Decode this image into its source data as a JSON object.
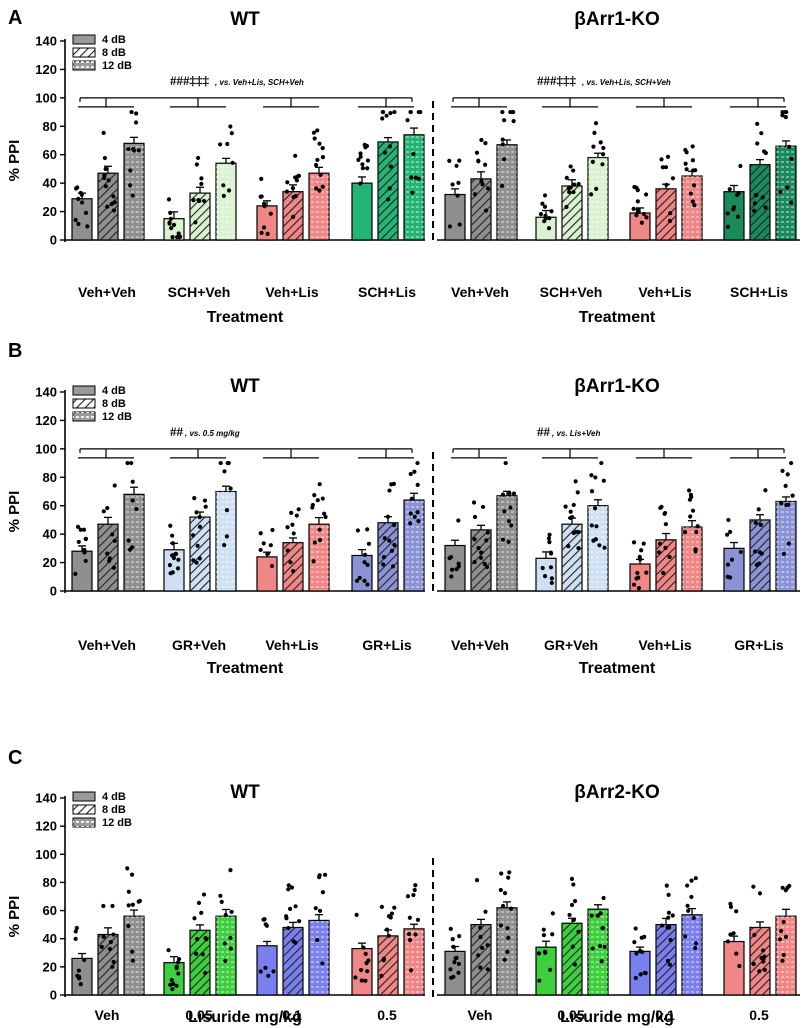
{
  "chart_data": [
    {
      "panel": "A",
      "type": "bar",
      "ylabel": "% PPI",
      "ylim": [
        0,
        140
      ],
      "yticks": [
        0,
        20,
        40,
        60,
        80,
        100,
        120,
        140
      ],
      "legend": [
        "4 dB",
        "8 dB",
        "12 dB"
      ],
      "groups": [
        {
          "title": "WT",
          "xlabel": "Treatment",
          "significance": {
            "symbols": "###‡‡‡",
            "suffix": ", vs. Veh+Lis, SCH+Veh"
          },
          "categories": [
            {
              "label": "Veh+Veh",
              "color": "#8f8f8f",
              "values": [
                29,
                47,
                68
              ]
            },
            {
              "label": "SCH+Veh",
              "color": "#d9f2cf",
              "values": [
                15,
                33,
                54
              ]
            },
            {
              "label": "Veh+Lis",
              "color": "#f08686",
              "values": [
                24,
                34,
                47
              ]
            },
            {
              "label": "SCH+Lis",
              "color": "#22b573",
              "values": [
                40,
                69,
                74
              ]
            }
          ]
        },
        {
          "title": "βArr1-KO",
          "xlabel": "Treatment",
          "significance": {
            "symbols": "###‡‡‡",
            "suffix": ", vs. Veh+Lis, SCH+Veh"
          },
          "categories": [
            {
              "label": "Veh+Veh",
              "color": "#8f8f8f",
              "values": [
                32,
                43,
                67
              ]
            },
            {
              "label": "SCH+Veh",
              "color": "#d9f2cf",
              "values": [
                16,
                38,
                58
              ]
            },
            {
              "label": "Veh+Lis",
              "color": "#f08686",
              "values": [
                19,
                36,
                45
              ]
            },
            {
              "label": "SCH+Lis",
              "color": "#1a8a5c",
              "values": [
                34,
                53,
                66
              ]
            }
          ]
        }
      ]
    },
    {
      "panel": "B",
      "type": "bar",
      "ylabel": "% PPI",
      "ylim": [
        0,
        140
      ],
      "yticks": [
        0,
        20,
        40,
        60,
        80,
        100,
        120,
        140
      ],
      "legend": [
        "4 dB",
        "8 dB",
        "12 dB"
      ],
      "groups": [
        {
          "title": "WT",
          "xlabel": "Treatment",
          "significance": {
            "symbols": "##",
            "suffix": ", vs. 0.5 mg/kg"
          },
          "categories": [
            {
              "label": "Veh+Veh",
              "color": "#8f8f8f",
              "values": [
                28,
                47,
                68
              ]
            },
            {
              "label": "GR+Veh",
              "color": "#cfe0f5",
              "values": [
                29,
                52,
                70
              ]
            },
            {
              "label": "Veh+Lis",
              "color": "#f08686",
              "values": [
                24,
                34,
                47
              ]
            },
            {
              "label": "GR+Lis",
              "color": "#8a93d6",
              "values": [
                25,
                48,
                64
              ]
            }
          ]
        },
        {
          "title": "βArr1-KO",
          "xlabel": "Treatment",
          "significance": {
            "symbols": "##",
            "suffix": ", vs. Lis+Veh"
          },
          "categories": [
            {
              "label": "Veh+Veh",
              "color": "#8f8f8f",
              "values": [
                32,
                43,
                67
              ]
            },
            {
              "label": "GR+Veh",
              "color": "#cfe0f5",
              "values": [
                23,
                47,
                60
              ]
            },
            {
              "label": "Veh+Lis",
              "color": "#f08686",
              "values": [
                19,
                36,
                45
              ]
            },
            {
              "label": "GR+Lis",
              "color": "#8a93d6",
              "values": [
                30,
                50,
                63
              ]
            }
          ]
        }
      ]
    },
    {
      "panel": "C",
      "type": "bar",
      "ylabel": "% PPI",
      "ylim": [
        0,
        140
      ],
      "yticks": [
        0,
        20,
        40,
        60,
        80,
        100,
        120,
        140
      ],
      "legend": [
        "4 dB",
        "8 dB",
        "12 dB"
      ],
      "groups": [
        {
          "title": "WT",
          "xlabel": "Lisuride mg/kg",
          "significance": null,
          "categories": [
            {
              "label": "Veh",
              "color": "#8f8f8f",
              "values": [
                26,
                43,
                56
              ]
            },
            {
              "label": "0.05",
              "color": "#3ecf3e",
              "values": [
                23,
                46,
                56
              ]
            },
            {
              "label": "0.1",
              "color": "#7a7ff0",
              "values": [
                35,
                48,
                53
              ]
            },
            {
              "label": "0.5",
              "color": "#f08686",
              "values": [
                33,
                42,
                47
              ]
            }
          ]
        },
        {
          "title": "βArr2-KO",
          "xlabel": "Lisuride mg/kg",
          "significance": null,
          "categories": [
            {
              "label": "Veh",
              "color": "#8f8f8f",
              "values": [
                31,
                50,
                62
              ]
            },
            {
              "label": "0.05",
              "color": "#3ecf3e",
              "values": [
                34,
                51,
                61
              ]
            },
            {
              "label": "0.1",
              "color": "#7a7ff0",
              "values": [
                31,
                50,
                57
              ]
            },
            {
              "label": "0.5",
              "color": "#f08686",
              "values": [
                38,
                48,
                56
              ]
            }
          ]
        }
      ]
    }
  ]
}
